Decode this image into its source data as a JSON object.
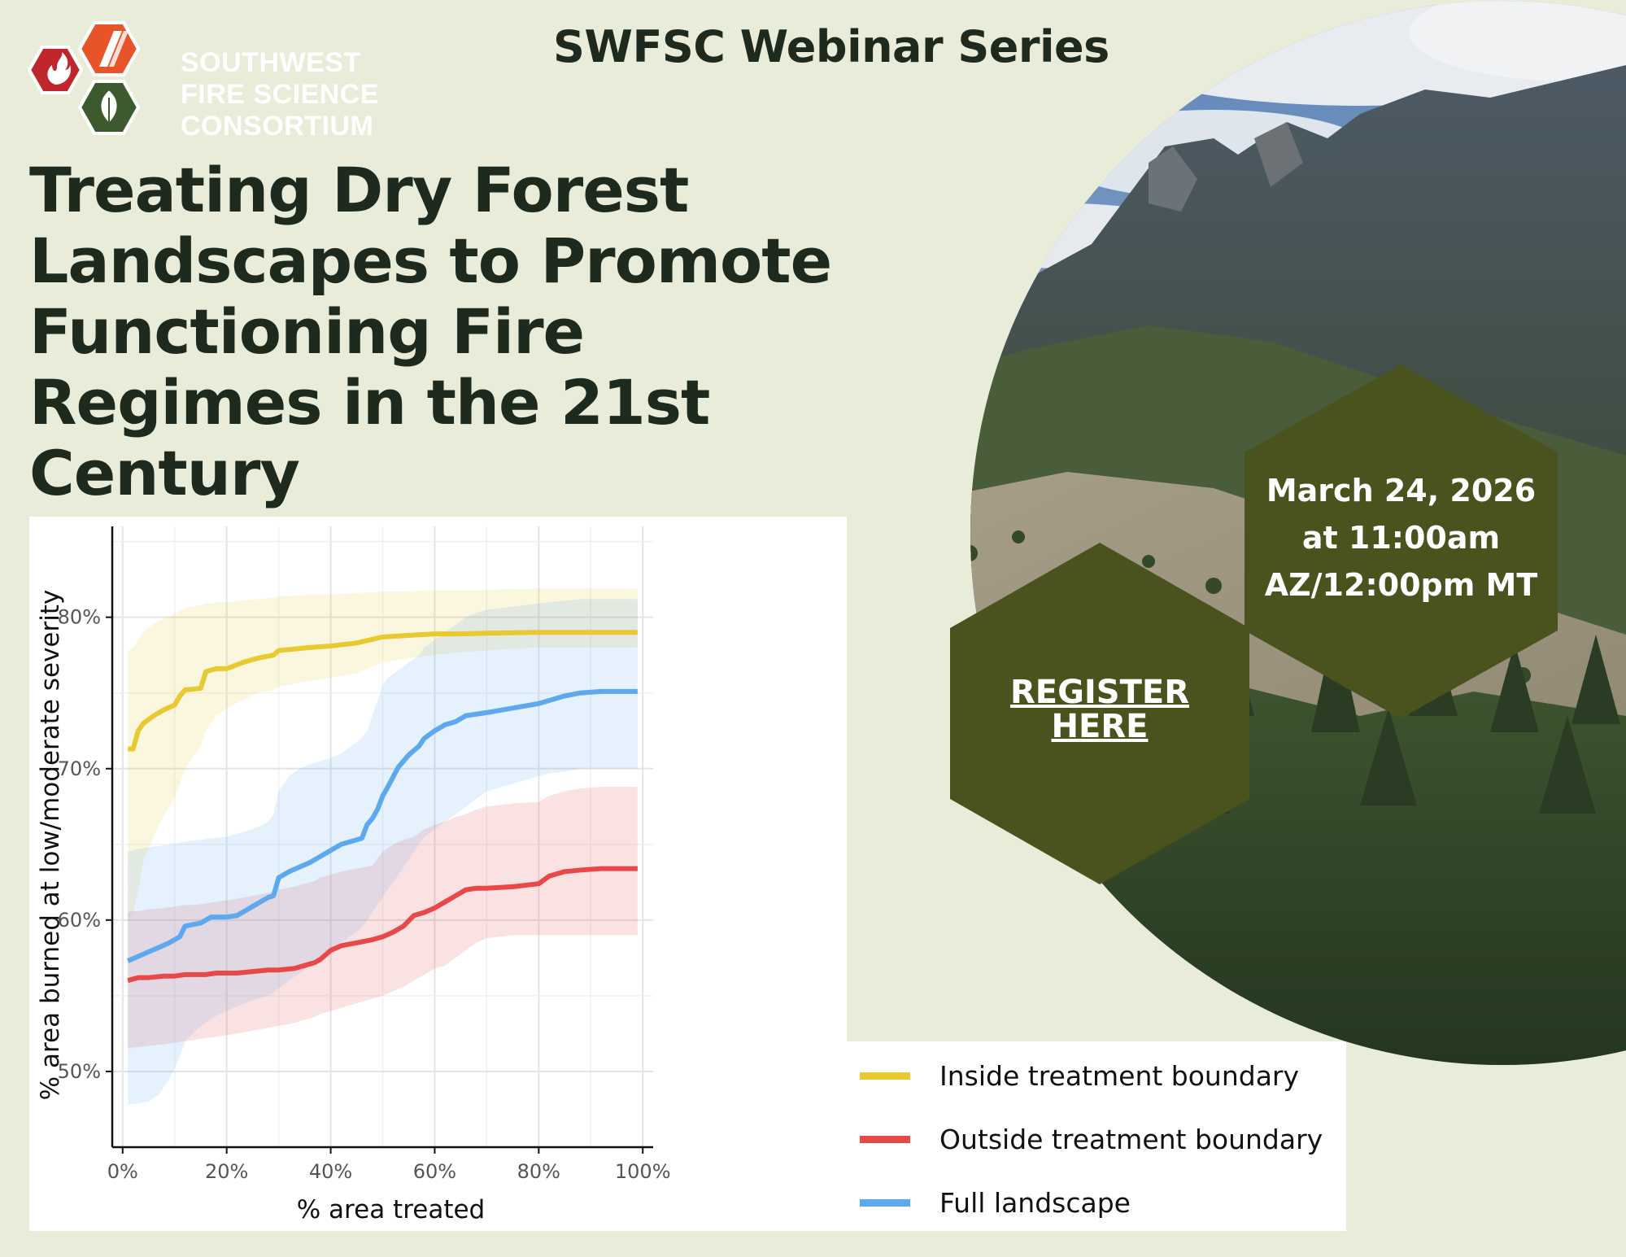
{
  "logo": {
    "lines": [
      "SOUTHWEST",
      "FIRE SCIENCE",
      "CONSORTIUM"
    ]
  },
  "header": {
    "series": "SWFSC Webinar Series"
  },
  "title": {
    "lines": [
      "Treating Dry Forest",
      "Landscapes to Promote",
      "Functioning Fire",
      "Regimes in the 21st",
      "Century"
    ]
  },
  "event": {
    "date_lines": [
      "March 24, 2026",
      "at 11:00am",
      "AZ/12:00pm MT"
    ],
    "register_lines": [
      "REGISTER",
      "HERE"
    ]
  },
  "colors": {
    "background": "#e9ecd9",
    "dark_text": "#1f2a1f",
    "hex_fill": "#4a521e",
    "inside": "#e8c930",
    "outside": "#e84848",
    "full": "#5ea9ee"
  },
  "chart_data": {
    "type": "line",
    "title": "",
    "xlabel": "% area treated",
    "ylabel": "% area burned at low/moderate severity",
    "xlim": [
      -2,
      102
    ],
    "ylim": [
      45,
      86
    ],
    "x_ticks": [
      "0%",
      "20%",
      "40%",
      "60%",
      "80%",
      "100%"
    ],
    "y_ticks": [
      "50%",
      "60%",
      "70%",
      "80%"
    ],
    "grid": true,
    "legend_position": "bottom-right (outside)",
    "series": [
      {
        "name": "Inside treatment boundary",
        "color": "#e8c930",
        "x": [
          1,
          2,
          3,
          4,
          6,
          8,
          10,
          11,
          12,
          15,
          16,
          18,
          20,
          23,
          26,
          29,
          30,
          33,
          36,
          40,
          45,
          50,
          55,
          60,
          65,
          70,
          80,
          90,
          99
        ],
        "y": [
          71.3,
          71.3,
          72.5,
          73.0,
          73.5,
          73.9,
          74.2,
          74.8,
          75.2,
          75.3,
          76.4,
          76.6,
          76.6,
          77.0,
          77.3,
          77.5,
          77.8,
          77.9,
          78.0,
          78.1,
          78.3,
          78.7,
          78.8,
          78.9,
          78.9,
          78.95,
          79.0,
          79.0,
          79.0
        ],
        "lower": [
          60.0,
          60.5,
          62.0,
          64.0,
          65.5,
          67.0,
          68.0,
          69.0,
          70.0,
          71.5,
          72.5,
          73.5,
          74.0,
          74.5,
          75.0,
          75.2,
          75.4,
          75.6,
          75.8,
          76.0,
          76.3,
          77.0,
          77.3,
          77.5,
          77.7,
          77.8,
          78.0,
          78.0,
          78.0
        ],
        "upper": [
          77.8,
          78.0,
          78.5,
          79.0,
          79.6,
          79.9,
          80.2,
          80.4,
          80.6,
          80.8,
          80.9,
          81.0,
          81.0,
          81.1,
          81.2,
          81.3,
          81.4,
          81.4,
          81.5,
          81.5,
          81.6,
          81.7,
          81.7,
          81.8,
          81.8,
          81.8,
          81.9,
          81.9,
          81.9
        ]
      },
      {
        "name": "Outside treatment boundary",
        "color": "#e84848",
        "x": [
          1,
          2,
          3,
          5,
          8,
          10,
          12,
          14,
          16,
          18,
          20,
          22,
          25,
          28,
          30,
          33,
          35,
          37,
          38,
          40,
          42,
          45,
          48,
          50,
          52,
          54,
          56,
          58,
          60,
          62,
          64,
          66,
          68,
          70,
          75,
          80,
          82,
          85,
          88,
          92,
          96,
          99
        ],
        "y": [
          56.0,
          56.1,
          56.2,
          56.2,
          56.3,
          56.3,
          56.4,
          56.4,
          56.4,
          56.5,
          56.5,
          56.5,
          56.6,
          56.7,
          56.7,
          56.8,
          57.0,
          57.2,
          57.4,
          58.0,
          58.3,
          58.5,
          58.7,
          58.9,
          59.2,
          59.6,
          60.3,
          60.5,
          60.8,
          61.2,
          61.6,
          62.0,
          62.1,
          62.1,
          62.2,
          62.4,
          62.9,
          63.2,
          63.3,
          63.4,
          63.4,
          63.4
        ],
        "lower": [
          51.5,
          51.6,
          51.6,
          51.7,
          51.8,
          51.9,
          52.0,
          52.1,
          52.2,
          52.3,
          52.4,
          52.5,
          52.7,
          52.9,
          53.0,
          53.2,
          53.4,
          53.6,
          53.8,
          54.0,
          54.2,
          54.5,
          54.8,
          55.0,
          55.3,
          55.6,
          56.0,
          56.4,
          56.8,
          57.0,
          57.5,
          58.0,
          58.5,
          58.8,
          59.0,
          59.0,
          59.0,
          59.0,
          59.0,
          59.0,
          59.0,
          59.0
        ],
        "upper": [
          60.5,
          60.6,
          60.6,
          60.7,
          60.8,
          60.9,
          61.0,
          61.0,
          61.1,
          61.2,
          61.3,
          61.4,
          61.6,
          61.8,
          62.0,
          62.2,
          62.4,
          62.6,
          62.8,
          63.0,
          63.2,
          63.4,
          63.6,
          64.5,
          65.0,
          65.3,
          65.5,
          66.0,
          66.3,
          66.5,
          66.8,
          67.0,
          67.3,
          67.5,
          67.7,
          67.8,
          68.2,
          68.5,
          68.7,
          68.8,
          68.8,
          68.8
        ]
      },
      {
        "name": "Full landscape",
        "color": "#5ea9ee",
        "x": [
          1,
          3,
          5,
          7,
          9,
          11,
          12,
          15,
          17,
          20,
          22,
          25,
          28,
          29,
          30,
          32,
          34,
          36,
          38,
          40,
          42,
          44,
          46,
          47,
          48,
          49,
          50,
          51,
          53,
          55,
          57,
          58,
          60,
          62,
          64,
          66,
          68,
          70,
          75,
          80,
          82,
          85,
          88,
          92,
          96,
          99
        ],
        "y": [
          57.3,
          57.6,
          57.9,
          58.2,
          58.5,
          58.9,
          59.6,
          59.8,
          60.2,
          60.2,
          60.3,
          60.9,
          61.5,
          61.6,
          62.8,
          63.2,
          63.5,
          63.8,
          64.2,
          64.6,
          65.0,
          65.2,
          65.4,
          66.3,
          66.7,
          67.3,
          68.2,
          68.8,
          70.1,
          70.9,
          71.5,
          72.0,
          72.5,
          72.9,
          73.1,
          73.5,
          73.6,
          73.7,
          74.0,
          74.3,
          74.5,
          74.8,
          75.0,
          75.1,
          75.1,
          75.1
        ],
        "lower": [
          47.8,
          47.9,
          48.0,
          48.5,
          49.5,
          51.0,
          52.0,
          53.0,
          53.5,
          54.0,
          54.3,
          54.7,
          55.0,
          55.2,
          55.5,
          56.0,
          56.5,
          57.0,
          57.5,
          58.0,
          58.5,
          59.0,
          59.5,
          60.0,
          60.5,
          61.0,
          61.5,
          62.0,
          63.0,
          64.0,
          65.0,
          65.5,
          66.0,
          66.5,
          67.0,
          67.5,
          68.0,
          68.5,
          69.0,
          69.5,
          69.7,
          69.8,
          70.0,
          70.0,
          70.0,
          70.0
        ],
        "upper": [
          64.5,
          64.7,
          64.8,
          64.9,
          65.0,
          65.1,
          65.2,
          65.3,
          65.4,
          65.5,
          65.7,
          66.0,
          66.5,
          67.0,
          68.5,
          69.5,
          70.0,
          70.3,
          70.5,
          70.7,
          71.0,
          71.5,
          72.0,
          72.5,
          73.5,
          74.5,
          75.5,
          76.0,
          76.5,
          77.0,
          77.5,
          78.0,
          78.5,
          79.0,
          79.5,
          80.0,
          80.3,
          80.5,
          80.7,
          80.9,
          81.0,
          81.1,
          81.2,
          81.2,
          81.2,
          81.2
        ]
      }
    ]
  }
}
